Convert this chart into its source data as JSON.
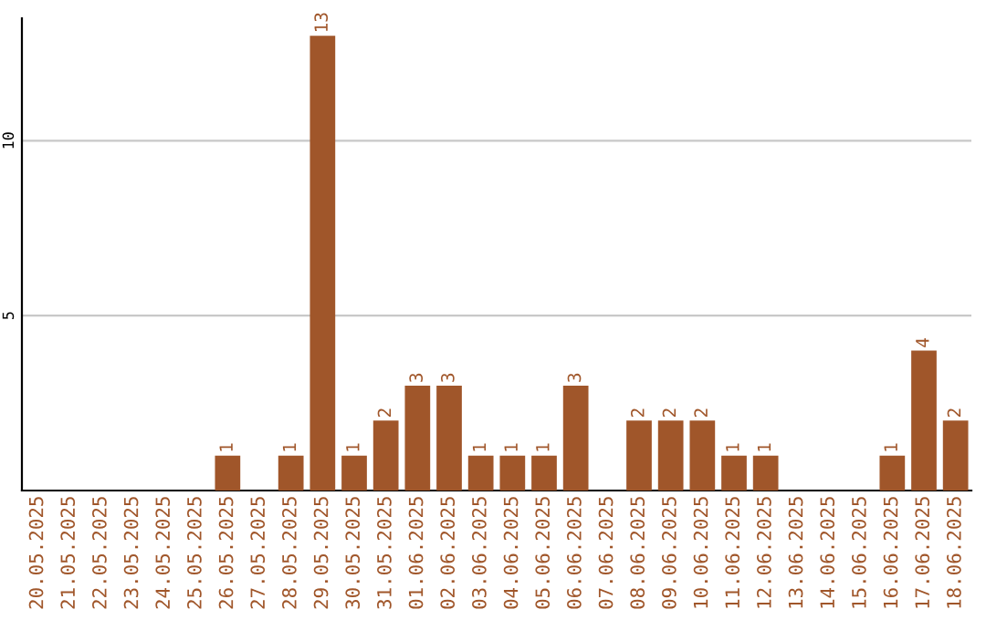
{
  "chart_data": {
    "type": "bar",
    "categories": [
      "20.05.2025",
      "21.05.2025",
      "22.05.2025",
      "23.05.2025",
      "24.05.2025",
      "25.05.2025",
      "26.05.2025",
      "27.05.2025",
      "28.05.2025",
      "29.05.2025",
      "30.05.2025",
      "31.05.2025",
      "01.06.2025",
      "02.06.2025",
      "03.06.2025",
      "04.06.2025",
      "05.06.2025",
      "06.06.2025",
      "07.06.2025",
      "08.06.2025",
      "09.06.2025",
      "10.06.2025",
      "11.06.2025",
      "12.06.2025",
      "13.06.2025",
      "14.06.2025",
      "15.06.2025",
      "16.06.2025",
      "17.06.2025",
      "18.06.2025"
    ],
    "values": [
      0,
      0,
      0,
      0,
      0,
      0,
      1,
      0,
      1,
      13,
      1,
      2,
      3,
      3,
      1,
      1,
      1,
      3,
      0,
      2,
      2,
      2,
      1,
      1,
      0,
      0,
      0,
      1,
      4,
      2
    ],
    "value_labels": [
      null,
      null,
      null,
      null,
      null,
      null,
      "1",
      null,
      "1",
      "13",
      "1",
      "2",
      "3",
      "3",
      "1",
      "1",
      "1",
      "3",
      null,
      "2",
      "2",
      "2",
      "1",
      "1",
      null,
      null,
      null,
      "1",
      "4",
      "2"
    ],
    "color": "#a0562a",
    "ylim": [
      0,
      13.5
    ],
    "yticks": [
      5,
      10
    ],
    "grid": "y"
  }
}
